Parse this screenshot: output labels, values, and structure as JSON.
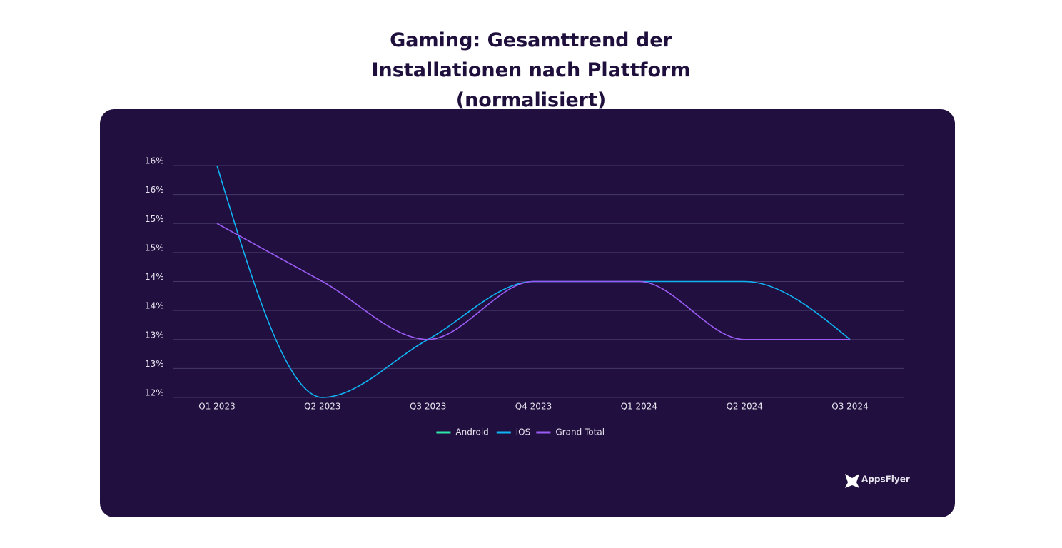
{
  "chart_data": {
    "type": "line",
    "title": "Gaming: Gesamttrend der Installationen nach Plattform (normalisiert)",
    "categories": [
      "Q1 2023",
      "Q2 2023",
      "Q3 2023",
      "Q4 2023",
      "Q1 2024",
      "Q2 2024",
      "Q3 2024"
    ],
    "series": [
      {
        "name": "Android",
        "color": "#2ee6a8",
        "values": [
          null,
          null,
          null,
          null,
          null,
          null,
          null
        ]
      },
      {
        "name": "iOS",
        "color": "#10b4f5",
        "values": [
          16,
          12,
          13,
          14,
          14,
          14,
          13
        ]
      },
      {
        "name": "Grand Total",
        "color": "#9b5cf6",
        "values": [
          15,
          14,
          13,
          14,
          14,
          13,
          13
        ]
      }
    ],
    "ylim": [
      12,
      16
    ],
    "yticks": [
      {
        "value": 12,
        "label": "12%"
      },
      {
        "value": 12.5,
        "label": "13%"
      },
      {
        "value": 13,
        "label": "13%"
      },
      {
        "value": 13.5,
        "label": "14%"
      },
      {
        "value": 14,
        "label": "14%"
      },
      {
        "value": 14.5,
        "label": "15%"
      },
      {
        "value": 15,
        "label": "15%"
      },
      {
        "value": 15.5,
        "label": "16%"
      },
      {
        "value": 16,
        "label": "16%"
      }
    ],
    "grid": true,
    "legend": "bottom",
    "brand": "AppsFlyer"
  }
}
